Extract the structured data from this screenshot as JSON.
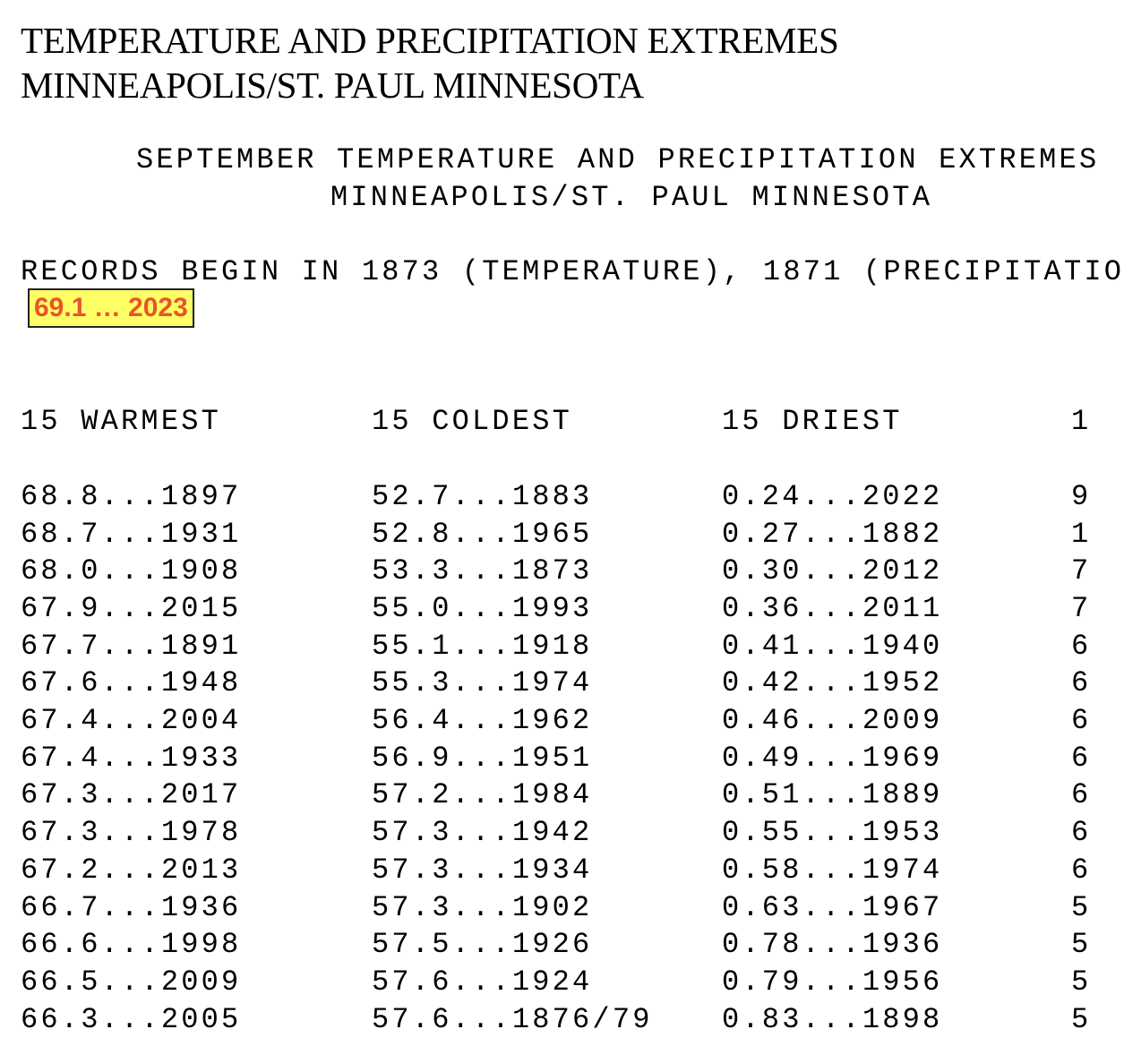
{
  "heading": {
    "line1": "TEMPERATURE AND PRECIPITATION EXTREMES",
    "line2": "MINNEAPOLIS/ST. PAUL MINNESOTA"
  },
  "subheading": {
    "line1": "SEPTEMBER TEMPERATURE AND PRECIPITATION EXTREMES",
    "line2": "MINNEAPOLIS/ST. PAUL MINNESOTA"
  },
  "records_begin": "RECORDS BEGIN IN 1873 (TEMPERATURE), 1871 (PRECIPITATIO",
  "highlight": "69.1 … 2023",
  "columns": {
    "warmest": {
      "header": "15 WARMEST",
      "rows": [
        "68.8...1897",
        "68.7...1931",
        "68.0...1908",
        "67.9...2015",
        "67.7...1891",
        "67.6...1948",
        "67.4...2004",
        "67.4...1933",
        "67.3...2017",
        "67.3...1978",
        "67.2...2013",
        "66.7...1936",
        "66.6...1998",
        "66.5...2009",
        "66.3...2005"
      ]
    },
    "coldest": {
      "header": "15 COLDEST",
      "rows": [
        "52.7...1883",
        "52.8...1965",
        "53.3...1873",
        "55.0...1993",
        "55.1...1918",
        "55.3...1974",
        "56.4...1962",
        "56.9...1951",
        "57.2...1984",
        "57.3...1942",
        "57.3...1934",
        "57.3...1902",
        "57.5...1926",
        "57.6...1924",
        "57.6...1876/79"
      ]
    },
    "driest": {
      "header": "15 DRIEST",
      "rows": [
        "0.24...2022",
        "0.27...1882",
        "0.30...2012",
        "0.36...2011",
        "0.41...1940",
        "0.42...1952",
        "0.46...2009",
        "0.49...1969",
        "0.51...1889",
        "0.55...1953",
        "0.58...1974",
        "0.63...1967",
        "0.78...1936",
        "0.79...1956",
        "0.83...1898"
      ]
    },
    "wettest_partial": {
      "header": "1",
      "rows": [
        "9",
        "1",
        "7",
        "7",
        "6",
        "6",
        "6",
        "6",
        "6",
        "6",
        "6",
        "5",
        "5",
        "5",
        "5"
      ]
    }
  }
}
